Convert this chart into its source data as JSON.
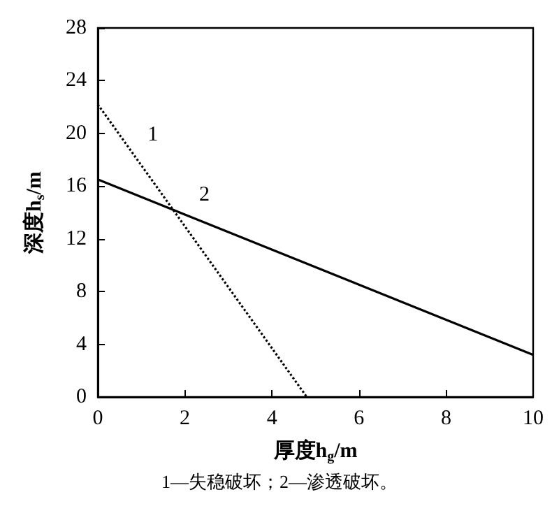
{
  "chart_data": {
    "type": "line",
    "xlabel": "厚度h$_{g}$/m",
    "ylabel": "深度h$_{s}$/m",
    "annotations": [
      "1—失稳破坏；2—渗透破坏。"
    ],
    "series": [
      {
        "name": "1",
        "color": "#000000",
        "line_style": "dotted",
        "x": [
          0,
          4.8
        ],
        "values": [
          22.2,
          0
        ]
      },
      {
        "name": "2",
        "color": "#000000",
        "line_style": "solid",
        "x": [
          0,
          10
        ],
        "values": [
          16.5,
          3.2
        ]
      }
    ],
    "xlim": [
      0,
      10
    ],
    "xticks": [
      0,
      2,
      4,
      6,
      8,
      10
    ],
    "ylim": [
      0,
      28
    ],
    "yticks": [
      0,
      4,
      8,
      12,
      16,
      20,
      24,
      28
    ],
    "grid": false,
    "legend": false,
    "marker": "none"
  }
}
